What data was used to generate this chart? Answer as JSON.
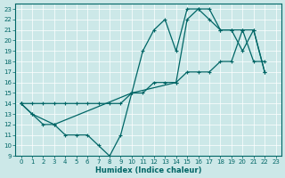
{
  "title": "",
  "xlabel": "Humidex (Indice chaleur)",
  "bg_color": "#cce8e8",
  "line_color": "#006666",
  "grid_color": "#aacccc",
  "xlim": [
    -0.5,
    23.5
  ],
  "ylim": [
    9,
    23.5
  ],
  "xticks": [
    0,
    1,
    2,
    3,
    4,
    5,
    6,
    7,
    8,
    9,
    10,
    11,
    12,
    13,
    14,
    15,
    16,
    17,
    18,
    19,
    20,
    21,
    22,
    23
  ],
  "yticks": [
    9,
    10,
    11,
    12,
    13,
    14,
    15,
    16,
    17,
    18,
    19,
    20,
    21,
    22,
    23
  ],
  "line1_x": [
    0,
    1,
    2,
    3,
    4,
    5,
    6,
    7,
    8,
    9,
    10,
    11,
    12,
    13,
    14,
    15,
    16,
    17,
    18,
    19,
    20,
    21,
    22
  ],
  "line1_y": [
    14,
    13,
    12,
    12,
    11,
    11,
    11,
    10,
    9,
    11,
    15,
    19,
    21,
    22,
    19,
    23,
    23,
    23,
    21,
    21,
    19,
    21,
    17
  ],
  "line2_x": [
    0,
    1,
    2,
    3,
    4,
    5,
    6,
    7,
    8,
    9,
    10,
    11,
    12,
    13,
    14,
    15,
    16,
    17,
    18,
    19,
    20,
    21,
    22
  ],
  "line2_y": [
    14,
    14,
    14,
    14,
    14,
    14,
    14,
    14,
    14,
    14,
    15,
    15,
    16,
    16,
    16,
    17,
    17,
    17,
    18,
    18,
    21,
    18,
    18
  ],
  "line3_x": [
    0,
    1,
    3,
    10,
    14,
    15,
    16,
    17,
    18,
    19,
    20,
    21,
    22
  ],
  "line3_y": [
    14,
    13,
    12,
    15,
    16,
    22,
    23,
    22,
    21,
    21,
    21,
    21,
    17
  ]
}
